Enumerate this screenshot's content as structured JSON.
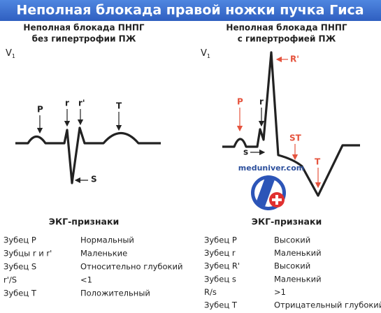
{
  "header": {
    "title": "Неполная блокада правой ножки пучка Гиса"
  },
  "panels": [
    {
      "heading": [
        "Неполная блокада ПНПГ",
        "без гипертрофии ПЖ"
      ],
      "lead": {
        "name": "V",
        "index": "1"
      },
      "labels": [
        "P",
        "r",
        "r'",
        "T",
        "S"
      ],
      "signs_title": "ЭКГ-признаки",
      "rows": [
        [
          "Зубец P",
          "Нормальный"
        ],
        [
          "Зубцы r и r'",
          "Маленькие"
        ],
        [
          "Зубец S",
          "Относительно глубокий"
        ],
        [
          "r'/S",
          "<1"
        ],
        [
          "Зубец T",
          "Положительный"
        ]
      ]
    },
    {
      "heading": [
        "Неполная блокада ПНПГ",
        "с гипертрофией ПЖ"
      ],
      "lead": {
        "name": "V",
        "index": "1"
      },
      "labels": [
        "R'",
        "P",
        "r",
        "ST",
        "s",
        "T"
      ],
      "watermark": "meduniver.com",
      "signs_title": "ЭКГ-признаки",
      "rows": [
        [
          "Зубец P",
          "Высокий"
        ],
        [
          "Зубец r",
          "Маленький"
        ],
        [
          "Зубец R'",
          "Высокий"
        ],
        [
          "Зубец s",
          "Маленький"
        ],
        [
          "R/s",
          ">1"
        ],
        [
          "Зубец T",
          "Отрицательный глубокий"
        ]
      ]
    }
  ]
}
